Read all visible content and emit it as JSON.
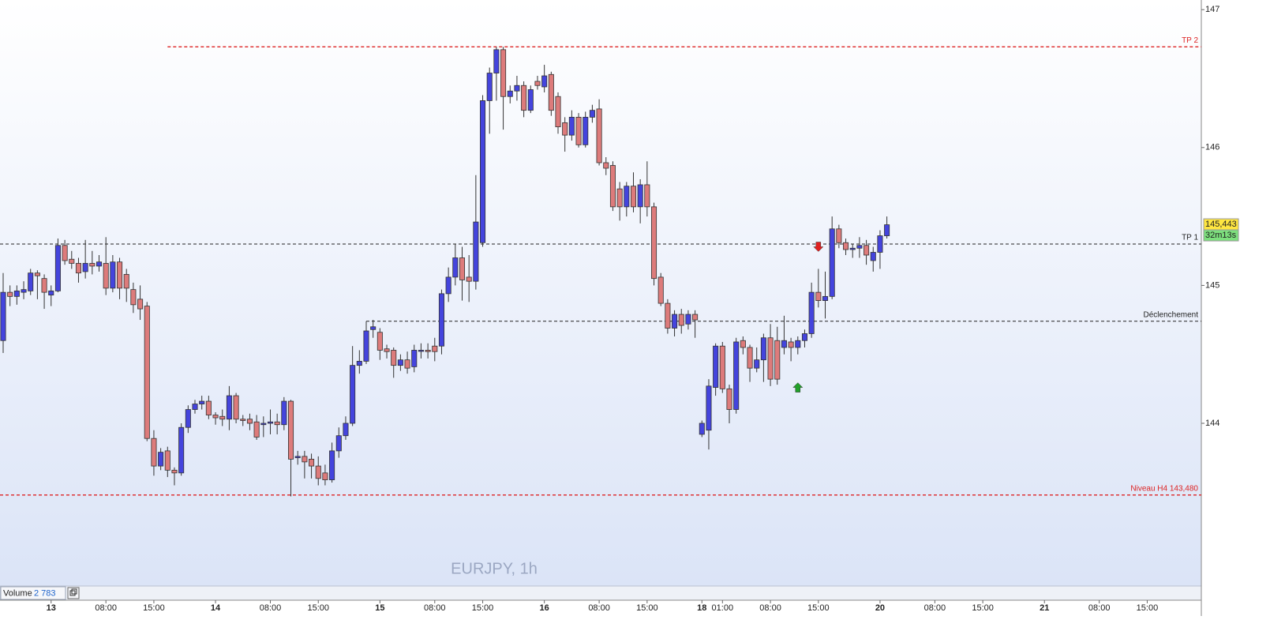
{
  "chart_data": {
    "type": "candlestick",
    "title": "EURJPY, 1h",
    "xlim": [
      -0.46,
      174.9
    ],
    "ylim": [
      142.82,
      147.07
    ],
    "xticks": [
      {
        "value": 7,
        "label": "13"
      },
      {
        "value": 15,
        "label": "08:00"
      },
      {
        "value": 22,
        "label": "15:00"
      },
      {
        "value": 31,
        "label": "14"
      },
      {
        "value": 39,
        "label": "08:00"
      },
      {
        "value": 46,
        "label": "15:00"
      },
      {
        "value": 55,
        "label": "15"
      },
      {
        "value": 63,
        "label": "08:00"
      },
      {
        "value": 70,
        "label": "15:00"
      },
      {
        "value": 79,
        "label": "16"
      },
      {
        "value": 87,
        "label": "08:00"
      },
      {
        "value": 94,
        "label": "15:00"
      },
      {
        "value": 102,
        "label": "18"
      },
      {
        "value": 105,
        "label": "01:00"
      },
      {
        "value": 112,
        "label": "08:00"
      },
      {
        "value": 119,
        "label": "15:00"
      },
      {
        "value": 128,
        "label": "20"
      },
      {
        "value": 136,
        "label": "08:00"
      },
      {
        "value": 143,
        "label": "15:00"
      },
      {
        "value": 152,
        "label": "21"
      },
      {
        "value": 160,
        "label": "08:00"
      },
      {
        "value": 167,
        "label": "15:00"
      }
    ],
    "yticks": [
      144,
      145,
      146,
      147
    ],
    "up_color": "#4444dd",
    "down_color": "#dd7b7b",
    "x": [
      0,
      1,
      2,
      3,
      4,
      5,
      6,
      7,
      8,
      9,
      10,
      11,
      12,
      13,
      14,
      15,
      16,
      17,
      18,
      19,
      20,
      21,
      22,
      23,
      24,
      25,
      26,
      27,
      28,
      29,
      30,
      31,
      32,
      33,
      34,
      35,
      36,
      37,
      38,
      39,
      40,
      41,
      42,
      43,
      44,
      45,
      46,
      47,
      48,
      49,
      50,
      51,
      52,
      53,
      54,
      55,
      56,
      57,
      58,
      59,
      60,
      61,
      62,
      63,
      64,
      65,
      66,
      67,
      68,
      69,
      70,
      71,
      72,
      73,
      74,
      75,
      76,
      77,
      78,
      79,
      80,
      81,
      82,
      83,
      84,
      85,
      86,
      87,
      88,
      89,
      90,
      91,
      92,
      93,
      94,
      95,
      96,
      97,
      98,
      99,
      100,
      101,
      102,
      103,
      104,
      105,
      106,
      107,
      108,
      109,
      110,
      111,
      112,
      113,
      114,
      115,
      116,
      117,
      118,
      119,
      120,
      121,
      122,
      123,
      124,
      125,
      126,
      127,
      128,
      129
    ],
    "open": [
      144.6,
      144.95,
      144.92,
      144.95,
      144.96,
      145.09,
      145.05,
      144.93,
      144.96,
      145.29,
      145.19,
      145.16,
      145.1,
      145.16,
      145.14,
      145.16,
      144.98,
      145.17,
      145.08,
      144.97,
      144.9,
      144.85,
      143.89,
      143.69,
      143.8,
      143.66,
      143.64,
      143.97,
      144.1,
      144.14,
      144.16,
      144.06,
      144.05,
      144.03,
      144.2,
      144.03,
      144.03,
      144.01,
      143.99,
      144.0,
      144.01,
      143.99,
      144.16,
      143.75,
      143.76,
      143.74,
      143.69,
      143.64,
      143.59,
      143.8,
      143.91,
      144.0,
      144.42,
      144.45,
      144.68,
      144.66,
      144.54,
      144.53,
      144.42,
      144.46,
      144.41,
      144.53,
      144.53,
      144.56,
      144.56,
      144.94,
      145.06,
      145.2,
      145.06,
      145.03,
      145.31,
      146.34,
      146.54,
      146.71,
      146.37,
      146.41,
      146.45,
      146.27,
      146.48,
      146.44,
      146.53,
      146.37,
      146.18,
      146.09,
      146.22,
      146.02,
      146.22,
      146.28,
      145.89,
      145.87,
      145.7,
      145.57,
      145.72,
      145.57,
      145.73,
      145.57,
      145.06,
      144.87,
      144.69,
      144.79,
      144.72,
      144.79,
      143.92,
      143.95,
      144.26,
      144.56,
      144.25,
      144.1,
      144.6,
      144.55,
      144.4,
      144.46,
      144.62,
      144.6,
      144.55,
      144.59,
      144.55,
      144.6,
      144.65,
      144.95,
      144.89,
      144.92,
      145.41,
      145.31,
      145.26,
      145.27,
      145.29,
      145.18,
      145.24,
      145.36
    ],
    "high": [
      145.09,
      145.0,
      145.0,
      145.03,
      145.12,
      145.11,
      145.08,
      145.0,
      145.34,
      145.33,
      145.25,
      145.2,
      145.33,
      145.25,
      145.22,
      145.35,
      145.22,
      145.2,
      145.12,
      145.02,
      145.0,
      144.88,
      143.95,
      143.82,
      143.83,
      143.68,
      144.0,
      144.13,
      144.17,
      144.2,
      144.2,
      144.08,
      144.1,
      144.27,
      144.22,
      144.06,
      144.07,
      144.06,
      144.05,
      144.1,
      144.07,
      144.19,
      144.17,
      143.8,
      143.8,
      143.78,
      143.76,
      143.7,
      143.86,
      143.97,
      144.05,
      144.56,
      144.53,
      144.74,
      144.75,
      144.69,
      144.57,
      144.55,
      144.5,
      144.52,
      144.57,
      144.58,
      144.58,
      144.62,
      144.97,
      145.13,
      145.3,
      145.28,
      145.22,
      145.8,
      146.38,
      146.58,
      146.73,
      146.73,
      146.45,
      146.52,
      146.48,
      146.45,
      146.52,
      146.6,
      146.55,
      146.4,
      146.22,
      146.27,
      146.25,
      146.26,
      146.31,
      146.35,
      145.93,
      145.9,
      145.75,
      145.75,
      145.82,
      145.77,
      145.9,
      145.6,
      145.09,
      144.9,
      144.82,
      144.83,
      144.82,
      144.82,
      144.02,
      144.32,
      144.58,
      144.59,
      144.28,
      144.62,
      144.63,
      144.57,
      144.55,
      144.65,
      144.72,
      144.7,
      144.78,
      144.62,
      144.63,
      144.68,
      145.02,
      145.12,
      145.1,
      145.5,
      145.44,
      145.34,
      145.3,
      145.35,
      145.33,
      145.28,
      145.4,
      145.5
    ],
    "low": [
      144.51,
      144.85,
      144.86,
      144.9,
      144.93,
      144.9,
      144.83,
      144.85,
      144.95,
      145.15,
      145.12,
      145.02,
      145.05,
      145.08,
      145.1,
      144.93,
      144.95,
      144.9,
      144.88,
      144.8,
      144.75,
      143.87,
      143.62,
      143.66,
      143.61,
      143.55,
      143.62,
      143.93,
      144.07,
      144.1,
      144.03,
      143.99,
      143.98,
      143.95,
      144.0,
      143.98,
      143.95,
      143.88,
      143.9,
      143.92,
      143.92,
      143.95,
      143.47,
      143.7,
      143.6,
      143.6,
      143.55,
      143.55,
      143.57,
      143.75,
      143.88,
      143.98,
      144.36,
      144.43,
      144.62,
      144.46,
      144.47,
      144.33,
      144.38,
      144.36,
      144.37,
      144.47,
      144.47,
      144.45,
      144.5,
      144.88,
      145.0,
      144.89,
      144.88,
      144.97,
      145.28,
      146.1,
      146.34,
      146.13,
      146.32,
      146.34,
      146.22,
      146.25,
      146.42,
      146.4,
      146.23,
      146.1,
      145.97,
      146.05,
      146.0,
      146.0,
      146.18,
      145.87,
      145.8,
      145.54,
      145.47,
      145.5,
      145.53,
      145.45,
      145.5,
      145.0,
      144.85,
      144.65,
      144.63,
      144.65,
      144.68,
      144.62,
      143.9,
      143.81,
      144.2,
      144.22,
      144.0,
      144.07,
      144.5,
      144.3,
      144.37,
      144.3,
      144.27,
      144.28,
      144.5,
      144.45,
      144.5,
      144.55,
      144.62,
      144.84,
      144.76,
      144.9,
      145.27,
      145.22,
      145.2,
      145.2,
      145.15,
      145.1,
      145.12,
      145.34
    ],
    "close": [
      144.95,
      144.92,
      144.96,
      144.97,
      145.09,
      145.07,
      144.95,
      144.96,
      145.29,
      145.18,
      145.16,
      145.09,
      145.16,
      145.14,
      145.17,
      144.98,
      145.17,
      144.98,
      144.98,
      144.86,
      144.83,
      143.89,
      143.69,
      143.79,
      143.66,
      143.64,
      143.97,
      144.1,
      144.14,
      144.16,
      144.06,
      144.04,
      144.03,
      144.2,
      144.03,
      144.02,
      144.0,
      143.9,
      144.0,
      144.01,
      143.99,
      144.16,
      143.74,
      143.76,
      143.72,
      143.69,
      143.6,
      143.59,
      143.8,
      143.91,
      144.0,
      144.42,
      144.45,
      144.67,
      144.7,
      144.53,
      144.52,
      144.42,
      144.46,
      144.4,
      144.53,
      144.53,
      144.52,
      144.52,
      144.94,
      145.06,
      145.2,
      145.04,
      145.03,
      145.46,
      146.34,
      146.54,
      146.71,
      146.37,
      146.41,
      146.45,
      146.27,
      146.42,
      146.45,
      146.52,
      146.27,
      146.15,
      146.09,
      146.22,
      146.02,
      146.22,
      146.27,
      145.89,
      145.85,
      145.57,
      145.57,
      145.72,
      145.57,
      145.73,
      145.57,
      145.05,
      144.87,
      144.69,
      144.79,
      144.71,
      144.79,
      144.75,
      144.0,
      144.27,
      144.56,
      144.25,
      144.1,
      144.59,
      144.55,
      144.4,
      144.46,
      144.62,
      144.32,
      144.32,
      144.6,
      144.55,
      144.6,
      144.65,
      144.95,
      144.89,
      144.92,
      145.41,
      145.31,
      145.26,
      145.27,
      145.29,
      145.22,
      145.24,
      145.36,
      145.44
    ],
    "levels": [
      {
        "label": "TP 2",
        "value": 146.73,
        "color": "#dd2222",
        "start": 24
      },
      {
        "label": "TP 1",
        "value": 145.3,
        "color": "#222222"
      },
      {
        "label": "Déclenchement",
        "value": 144.74,
        "color": "#222222",
        "start": 53
      },
      {
        "label": "Niveau H4 143,480",
        "value": 143.48,
        "color": "#dd2222"
      }
    ],
    "signals": [
      {
        "x": 119,
        "value": 145.28,
        "direction": "down",
        "color": "#e02020"
      },
      {
        "x": 116,
        "value": 144.26,
        "direction": "up",
        "color": "#22a02a"
      }
    ],
    "last_price": {
      "value": 145.443,
      "label": "145,443"
    },
    "timer": "32m13s",
    "volume": {
      "label": "Volume",
      "value": 2783,
      "value_label": "2 783"
    }
  }
}
